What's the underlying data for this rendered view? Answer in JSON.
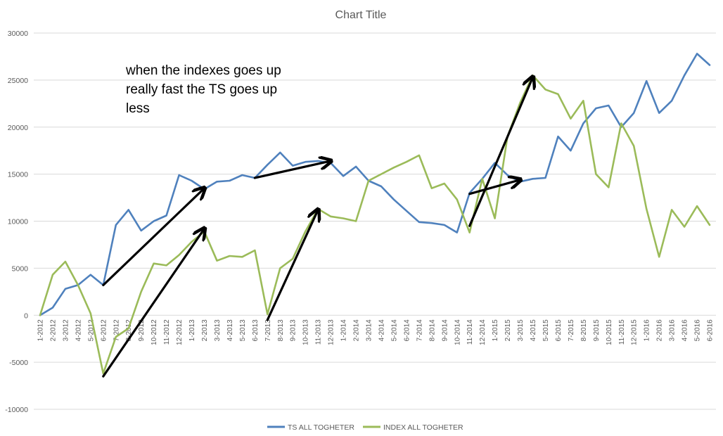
{
  "chart_data": {
    "type": "line",
    "title": "Chart Title",
    "xlabel": "",
    "ylabel": "",
    "ylim": [
      -10000,
      30000
    ],
    "y_ticks": [
      30000,
      25000,
      20000,
      15000,
      10000,
      5000,
      0,
      -5000,
      -10000
    ],
    "grid": true,
    "legend_position": "bottom",
    "categories": [
      "1-2012",
      "2-2012",
      "3-2012",
      "4-2012",
      "5-2012",
      "6-2012",
      "7-2012",
      "8-2012",
      "9-2012",
      "10-2012",
      "11-2012",
      "12-2012",
      "1-2013",
      "2-2013",
      "3-2013",
      "4-2013",
      "5-2013",
      "6-2013",
      "7-2013",
      "8-2013",
      "9-2013",
      "10-2013",
      "11-2013",
      "12-2013",
      "1-2014",
      "2-2014",
      "3-2014",
      "4-2014",
      "5-2014",
      "6-2014",
      "7-2014",
      "8-2014",
      "9-2014",
      "10-2014",
      "11-2014",
      "12-2014",
      "1-2015",
      "2-2015",
      "3-2015",
      "4-2015",
      "5-2015",
      "6-2015",
      "7-2015",
      "8-2015",
      "9-2015",
      "10-2015",
      "11-2015",
      "12-2015",
      "1-2016",
      "2-2016",
      "3-2016",
      "4-2016",
      "5-2016",
      "6-2016"
    ],
    "series": [
      {
        "name": "TS ALL TOGHETER",
        "color": "#4f81bd",
        "values": [
          0,
          800,
          2800,
          3200,
          4300,
          3200,
          9600,
          11200,
          9000,
          10000,
          10600,
          14900,
          14300,
          13400,
          14200,
          14300,
          14900,
          14600,
          16000,
          17300,
          15900,
          16300,
          16400,
          16200,
          14800,
          15800,
          14300,
          13700,
          12300,
          11100,
          9900,
          9800,
          9600,
          8800,
          13000,
          14500,
          16200,
          14900,
          14200,
          14500,
          14600,
          19000,
          17500,
          20400,
          22000,
          22300,
          20000,
          21500,
          24900,
          21500,
          22800,
          25500,
          27800,
          26600
        ]
      },
      {
        "name": "INDEX ALL TOGHETER",
        "color": "#9bbb59",
        "values": [
          0,
          4300,
          5700,
          3200,
          200,
          -6200,
          -2300,
          -1400,
          2500,
          5500,
          5300,
          6400,
          7800,
          8900,
          5800,
          6300,
          6200,
          6900,
          100,
          5000,
          6000,
          8900,
          11300,
          10500,
          10300,
          10000,
          14300,
          15000,
          15700,
          16300,
          17000,
          13500,
          14000,
          12300,
          8800,
          14500,
          10300,
          19000,
          22600,
          25500,
          24000,
          23500,
          20900,
          22800,
          15000,
          13600,
          20400,
          18000,
          11300,
          6200,
          11200,
          9400,
          11600,
          9600
        ]
      }
    ],
    "annotations": [
      {
        "text_lines": [
          "when the indexes goes up",
          "really fast the TS goes up",
          "less"
        ]
      }
    ],
    "arrows": [
      {
        "from": [
          "6-2012",
          -6500
        ],
        "to": [
          "2-2013",
          9200
        ]
      },
      {
        "from": [
          "6-2012",
          3200
        ],
        "to": [
          "2-2013",
          13500
        ]
      },
      {
        "from": [
          "7-2013",
          -500
        ],
        "to": [
          "11-2013",
          11200
        ]
      },
      {
        "from": [
          "6-2013",
          14600
        ],
        "to": [
          "12-2013",
          16400
        ]
      },
      {
        "from": [
          "11-2014",
          9500
        ],
        "to": [
          "4-2015",
          25300
        ]
      },
      {
        "from": [
          "11-2014",
          12900
        ],
        "to": [
          "3-2015",
          14400
        ]
      }
    ],
    "arrow_color": "#000000"
  }
}
